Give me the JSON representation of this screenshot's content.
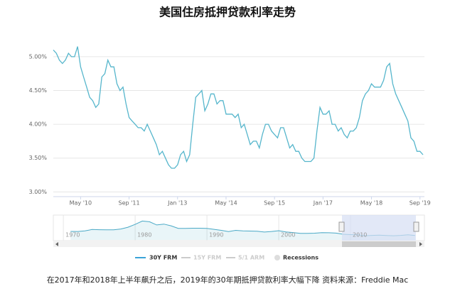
{
  "chart_data": [
    {
      "type": "line",
      "title": "美国住房抵押贷款利率走势",
      "x": [
        "Aug '09",
        "Sep '09",
        "Oct '09",
        "Nov '09",
        "Dec '09",
        "Jan '10",
        "Feb '10",
        "Mar '10",
        "Apr '10",
        "May '10",
        "Jun '10",
        "Jul '10",
        "Aug '10",
        "Sep '10",
        "Oct '10",
        "Nov '10",
        "Dec '10",
        "Jan '11",
        "Feb '11",
        "Mar '11",
        "Apr '11",
        "May '11",
        "Jun '11",
        "Jul '11",
        "Aug '11",
        "Sep '11",
        "Oct '11",
        "Nov '11",
        "Dec '11",
        "Jan '12",
        "Feb '12",
        "Mar '12",
        "Apr '12",
        "May '12",
        "Jun '12",
        "Jul '12",
        "Aug '12",
        "Sep '12",
        "Oct '12",
        "Nov '12",
        "Dec '12",
        "Jan '13",
        "Feb '13",
        "Mar '13",
        "Apr '13",
        "May '13",
        "Jun '13",
        "Jul '13",
        "Aug '13",
        "Sep '13",
        "Oct '13",
        "Nov '13",
        "Dec '13",
        "Jan '14",
        "Feb '14",
        "Mar '14",
        "Apr '14",
        "May '14",
        "Jun '14",
        "Jul '14",
        "Aug '14",
        "Sep '14",
        "Oct '14",
        "Nov '14",
        "Dec '14",
        "Jan '15",
        "Feb '15",
        "Mar '15",
        "Apr '15",
        "May '15",
        "Jun '15",
        "Jul '15",
        "Aug '15",
        "Sep '15",
        "Oct '15",
        "Nov '15",
        "Dec '15",
        "Jan '16",
        "Feb '16",
        "Mar '16",
        "Apr '16",
        "May '16",
        "Jun '16",
        "Jul '16",
        "Aug '16",
        "Sep '16",
        "Oct '16",
        "Nov '16",
        "Dec '16",
        "Jan '17",
        "Feb '17",
        "Mar '17",
        "Apr '17",
        "May '17",
        "Jun '17",
        "Jul '17",
        "Aug '17",
        "Sep '17",
        "Oct '17",
        "Nov '17",
        "Dec '17",
        "Jan '18",
        "Feb '18",
        "Mar '18",
        "Apr '18",
        "May '18",
        "Jun '18",
        "Jul '18",
        "Aug '18",
        "Sep '18",
        "Oct '18",
        "Nov '18",
        "Dec '18",
        "Jan '19",
        "Feb '19",
        "Mar '19",
        "Apr '19",
        "May '19",
        "Jun '19",
        "Jul '19",
        "Aug '19",
        "Sep '19",
        "Oct '19"
      ],
      "series": [
        {
          "name": "30Y FRM",
          "color": "#56b6cc",
          "values": [
            5.1,
            5.05,
            4.95,
            4.9,
            4.95,
            5.05,
            5.0,
            5.0,
            5.15,
            4.85,
            4.7,
            4.55,
            4.4,
            4.35,
            4.25,
            4.3,
            4.7,
            4.75,
            4.95,
            4.85,
            4.85,
            4.6,
            4.5,
            4.55,
            4.3,
            4.1,
            4.05,
            4.0,
            3.95,
            3.95,
            3.9,
            4.0,
            3.9,
            3.8,
            3.7,
            3.55,
            3.6,
            3.5,
            3.4,
            3.35,
            3.35,
            3.4,
            3.55,
            3.6,
            3.45,
            3.55,
            4.0,
            4.4,
            4.45,
            4.5,
            4.2,
            4.3,
            4.45,
            4.45,
            4.3,
            4.35,
            4.35,
            4.15,
            4.15,
            4.15,
            4.1,
            4.15,
            3.95,
            4.0,
            3.85,
            3.7,
            3.75,
            3.75,
            3.65,
            3.85,
            4.0,
            4.0,
            3.9,
            3.85,
            3.8,
            3.95,
            3.95,
            3.8,
            3.65,
            3.7,
            3.6,
            3.6,
            3.5,
            3.45,
            3.45,
            3.45,
            3.5,
            3.9,
            4.25,
            4.15,
            4.15,
            4.2,
            4.0,
            4.0,
            3.9,
            3.95,
            3.85,
            3.8,
            3.9,
            3.9,
            3.95,
            4.1,
            4.35,
            4.45,
            4.5,
            4.6,
            4.55,
            4.55,
            4.55,
            4.65,
            4.85,
            4.9,
            4.6,
            4.45,
            4.35,
            4.25,
            4.15,
            4.05,
            3.8,
            3.75,
            3.6,
            3.6,
            3.55
          ]
        }
      ],
      "inactive_legend": [
        "15Y FRM",
        "5/1 ARM",
        "Recessions"
      ],
      "xticks": [
        "May '10",
        "Sep '11",
        "Jan '13",
        "May '14",
        "Sep '15",
        "Jan '17",
        "May '18",
        "Sep '19"
      ],
      "ylim": [
        2.93,
        5.44
      ],
      "yticks": [
        {
          "value": 3,
          "label": "3.00%"
        },
        {
          "value": 3.5,
          "label": "3.50%"
        },
        {
          "value": 4,
          "label": "4.00%"
        },
        {
          "value": 4.5,
          "label": "4.50%"
        },
        {
          "value": 5,
          "label": "5.00%"
        }
      ],
      "grid": true
    },
    {
      "type": "line",
      "x": [
        1971,
        1972,
        1973,
        1974,
        1975,
        1976,
        1977,
        1978,
        1979,
        1980,
        1981,
        1982,
        1983,
        1984,
        1985,
        1986,
        1987,
        1988,
        1989,
        1990,
        1991,
        1992,
        1993,
        1994,
        1995,
        1996,
        1997,
        1998,
        1999,
        2000,
        2001,
        2002,
        2003,
        2004,
        2005,
        2006,
        2007,
        2008,
        2009,
        2010,
        2011,
        2012,
        2013,
        2014,
        2015,
        2016,
        2017,
        2018,
        2019
      ],
      "series": [
        {
          "color": "#4aa9c6",
          "values": [
            7.5,
            7.4,
            8.0,
            9.2,
            9.0,
            8.9,
            8.9,
            9.6,
            11.2,
            13.7,
            16.6,
            16.0,
            13.2,
            13.9,
            12.4,
            10.2,
            10.2,
            10.3,
            10.3,
            10.1,
            9.3,
            8.4,
            7.3,
            8.4,
            7.9,
            7.8,
            7.6,
            6.9,
            7.4,
            8.1,
            7.0,
            6.5,
            5.8,
            5.8,
            5.9,
            6.4,
            6.3,
            6.0,
            5.0,
            4.7,
            4.5,
            3.7,
            4.0,
            4.2,
            3.9,
            3.7,
            4.0,
            4.5,
            3.9
          ]
        }
      ],
      "xlim": [
        1968.8,
        2019.8
      ],
      "xticks": [
        1970,
        1980,
        1990,
        2000,
        2010
      ],
      "ylim": [
        0,
        20.6
      ]
    }
  ],
  "caption": "在2017年和2018年上半年飙升之后，2019年的30年期抵押贷款利率大幅下降 资料来源：Freddie Mac"
}
